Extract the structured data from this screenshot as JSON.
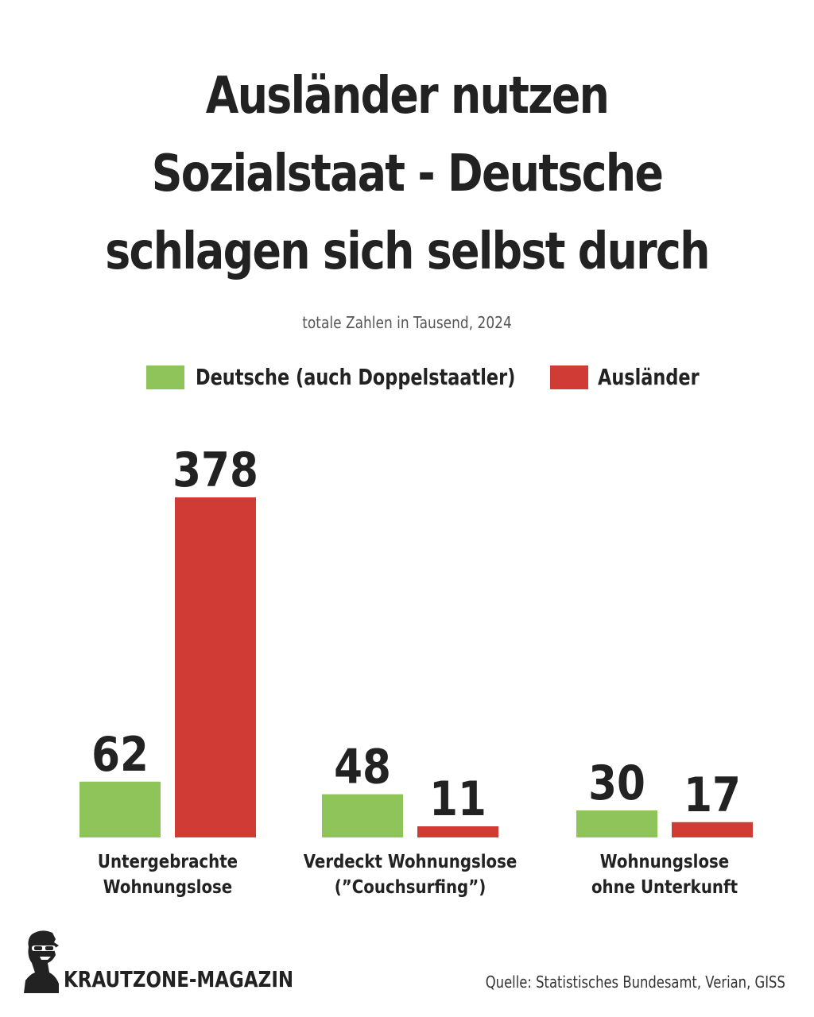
{
  "title_lines": [
    "Ausländer nutzen",
    "Sozialstaat - Deutsche",
    "schlagen sich selbst durch"
  ],
  "subtitle": "totale Zahlen in Tausend, 2024",
  "brand": "KRAUTZONE-MAGAZIN",
  "source": "Quelle: Statistisches Bundesamt, Verian, GISS",
  "colors": {
    "deutsche": "#8ec45a",
    "auslaender": "#d13b35",
    "text": "#222222"
  },
  "chart_data": {
    "type": "bar",
    "title": "Ausländer nutzen Sozialstaat - Deutsche schlagen sich selbst durch",
    "subtitle": "totale Zahlen in Tausend, 2024",
    "categories": [
      [
        "Untergebrachte",
        "Wohnungslose"
      ],
      [
        "Verdeckt Wohnungslose",
        "(”Couchsurfing”)"
      ],
      [
        "Wohnungslose",
        "ohne Unterkunft"
      ]
    ],
    "series": [
      {
        "name": "Deutsche (auch Doppelstaatler)",
        "values": [
          62,
          48,
          30
        ],
        "color": "#8ec45a"
      },
      {
        "name": "Ausländer",
        "values": [
          378,
          11,
          17
        ],
        "color": "#d13b35"
      }
    ],
    "data_labels": true,
    "grid": false,
    "legend": "top-center",
    "ylim": [
      0,
      378
    ]
  }
}
